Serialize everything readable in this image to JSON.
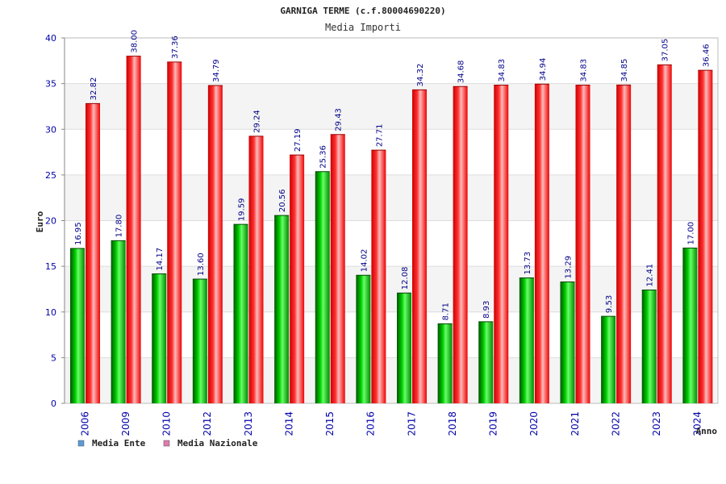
{
  "chart_data": {
    "type": "bar",
    "title": "GARNIGA TERME (c.f.80004690220)",
    "subtitle": "Media Importi",
    "xlabel": "Anno",
    "ylabel": "Euro",
    "ylim": [
      0,
      40
    ],
    "yticks": [
      0,
      5,
      10,
      15,
      20,
      25,
      30,
      35,
      40
    ],
    "grid": true,
    "legend_position": "bottom-left",
    "categories": [
      "2006",
      "2009",
      "2010",
      "2012",
      "2013",
      "2014",
      "2015",
      "2016",
      "2017",
      "2018",
      "2019",
      "2020",
      "2021",
      "2022",
      "2023",
      "2024"
    ],
    "series": [
      {
        "name": "Media Ente",
        "legend_color": "#5b9bd5",
        "bar_color": "#00aa00",
        "values": [
          16.95,
          17.8,
          14.17,
          13.6,
          19.59,
          20.56,
          25.36,
          14.02,
          12.08,
          8.71,
          8.93,
          13.73,
          13.29,
          9.53,
          12.41,
          17.0
        ],
        "labels": [
          "16.95",
          "17.80",
          "14.17",
          "13.60",
          "19.59",
          "20.56",
          "25.36",
          "14.02",
          "12.08",
          "8.71",
          "8.93",
          "13.73",
          "13.29",
          "9.53",
          "12.41",
          "17.00"
        ]
      },
      {
        "name": "Media Nazionale",
        "legend_color": "#e07ab0",
        "bar_color": "#ee1111",
        "values": [
          32.82,
          38.0,
          37.36,
          34.79,
          29.24,
          27.19,
          29.43,
          27.71,
          34.32,
          34.68,
          34.83,
          34.94,
          34.83,
          34.85,
          37.05,
          36.46
        ],
        "labels": [
          "32.82",
          "38.00",
          "37.36",
          "34.79",
          "29.24",
          "27.19",
          "29.43",
          "27.71",
          "34.32",
          "34.68",
          "34.83",
          "34.94",
          "34.83",
          "34.85",
          "37.05",
          "36.46"
        ]
      }
    ]
  }
}
